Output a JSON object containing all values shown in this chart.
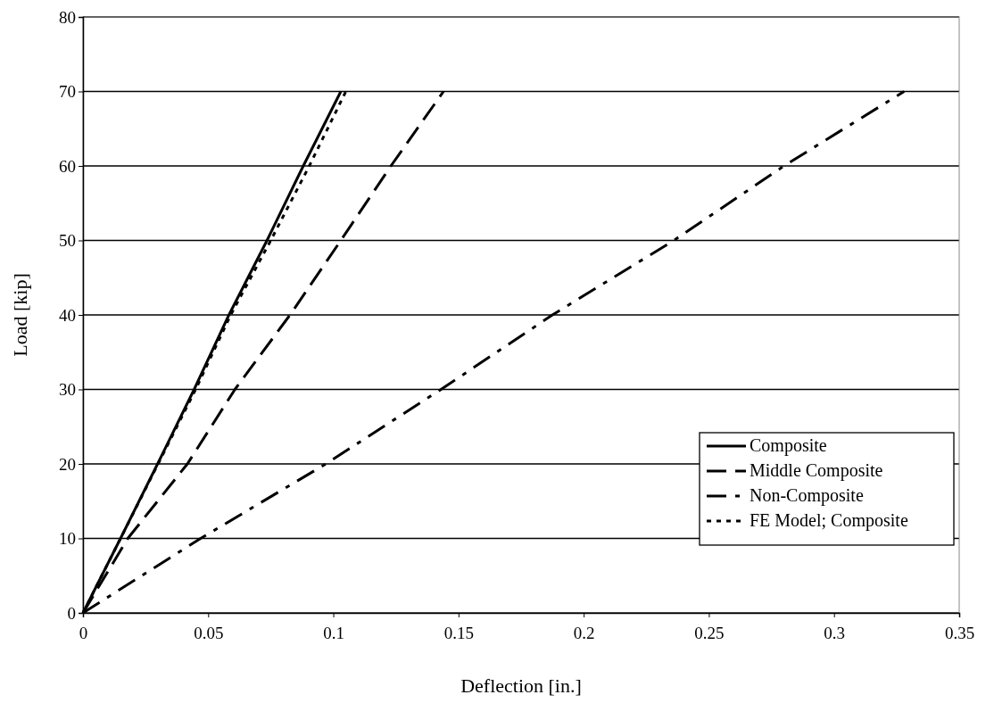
{
  "chart_data": {
    "type": "line",
    "xlabel": "Deflection [in.]",
    "ylabel": "Load [kip]",
    "xlim": [
      0,
      0.35
    ],
    "xticks": [
      0,
      0.05,
      0.1,
      0.15,
      0.2,
      0.25,
      0.3,
      0.35
    ],
    "ylim": [
      0,
      80
    ],
    "yticks": [
      0,
      10,
      20,
      30,
      40,
      50,
      60,
      70,
      80
    ],
    "grid": "y",
    "legend": "bottom right",
    "marker": "none",
    "series": [
      {
        "name": "Composite",
        "color": "#000000",
        "line_style": "solid",
        "x": [
          0,
          0.015,
          0.0298,
          0.0444,
          0.0583,
          0.0735,
          0.088,
          0.103
        ],
        "values": [
          0,
          10,
          20,
          30,
          40,
          50,
          60,
          70
        ]
      },
      {
        "name": "Middle Composite",
        "color": "#000000",
        "line_style": "dashed",
        "x": [
          0,
          0.0179,
          0.0417,
          0.0607,
          0.0827,
          0.103,
          0.123,
          0.144
        ],
        "values": [
          0,
          10,
          20,
          30,
          40,
          50,
          60,
          70
        ]
      },
      {
        "name": "Non-Composite",
        "color": "#000000",
        "line_style": "dashdot",
        "x": [
          0,
          0.047,
          0.097,
          0.143,
          0.1875,
          0.236,
          0.28,
          0.328
        ],
        "values": [
          0,
          10,
          20,
          30,
          40,
          50,
          60,
          70
        ]
      },
      {
        "name": "FE Model; Composite",
        "color": "#000000",
        "line_style": "dotted",
        "x": [
          0,
          0.015,
          0.03,
          0.045,
          0.059,
          0.075,
          0.0904,
          0.105
        ],
        "values": [
          0,
          10,
          20,
          30,
          40,
          50,
          60,
          70
        ]
      }
    ]
  }
}
